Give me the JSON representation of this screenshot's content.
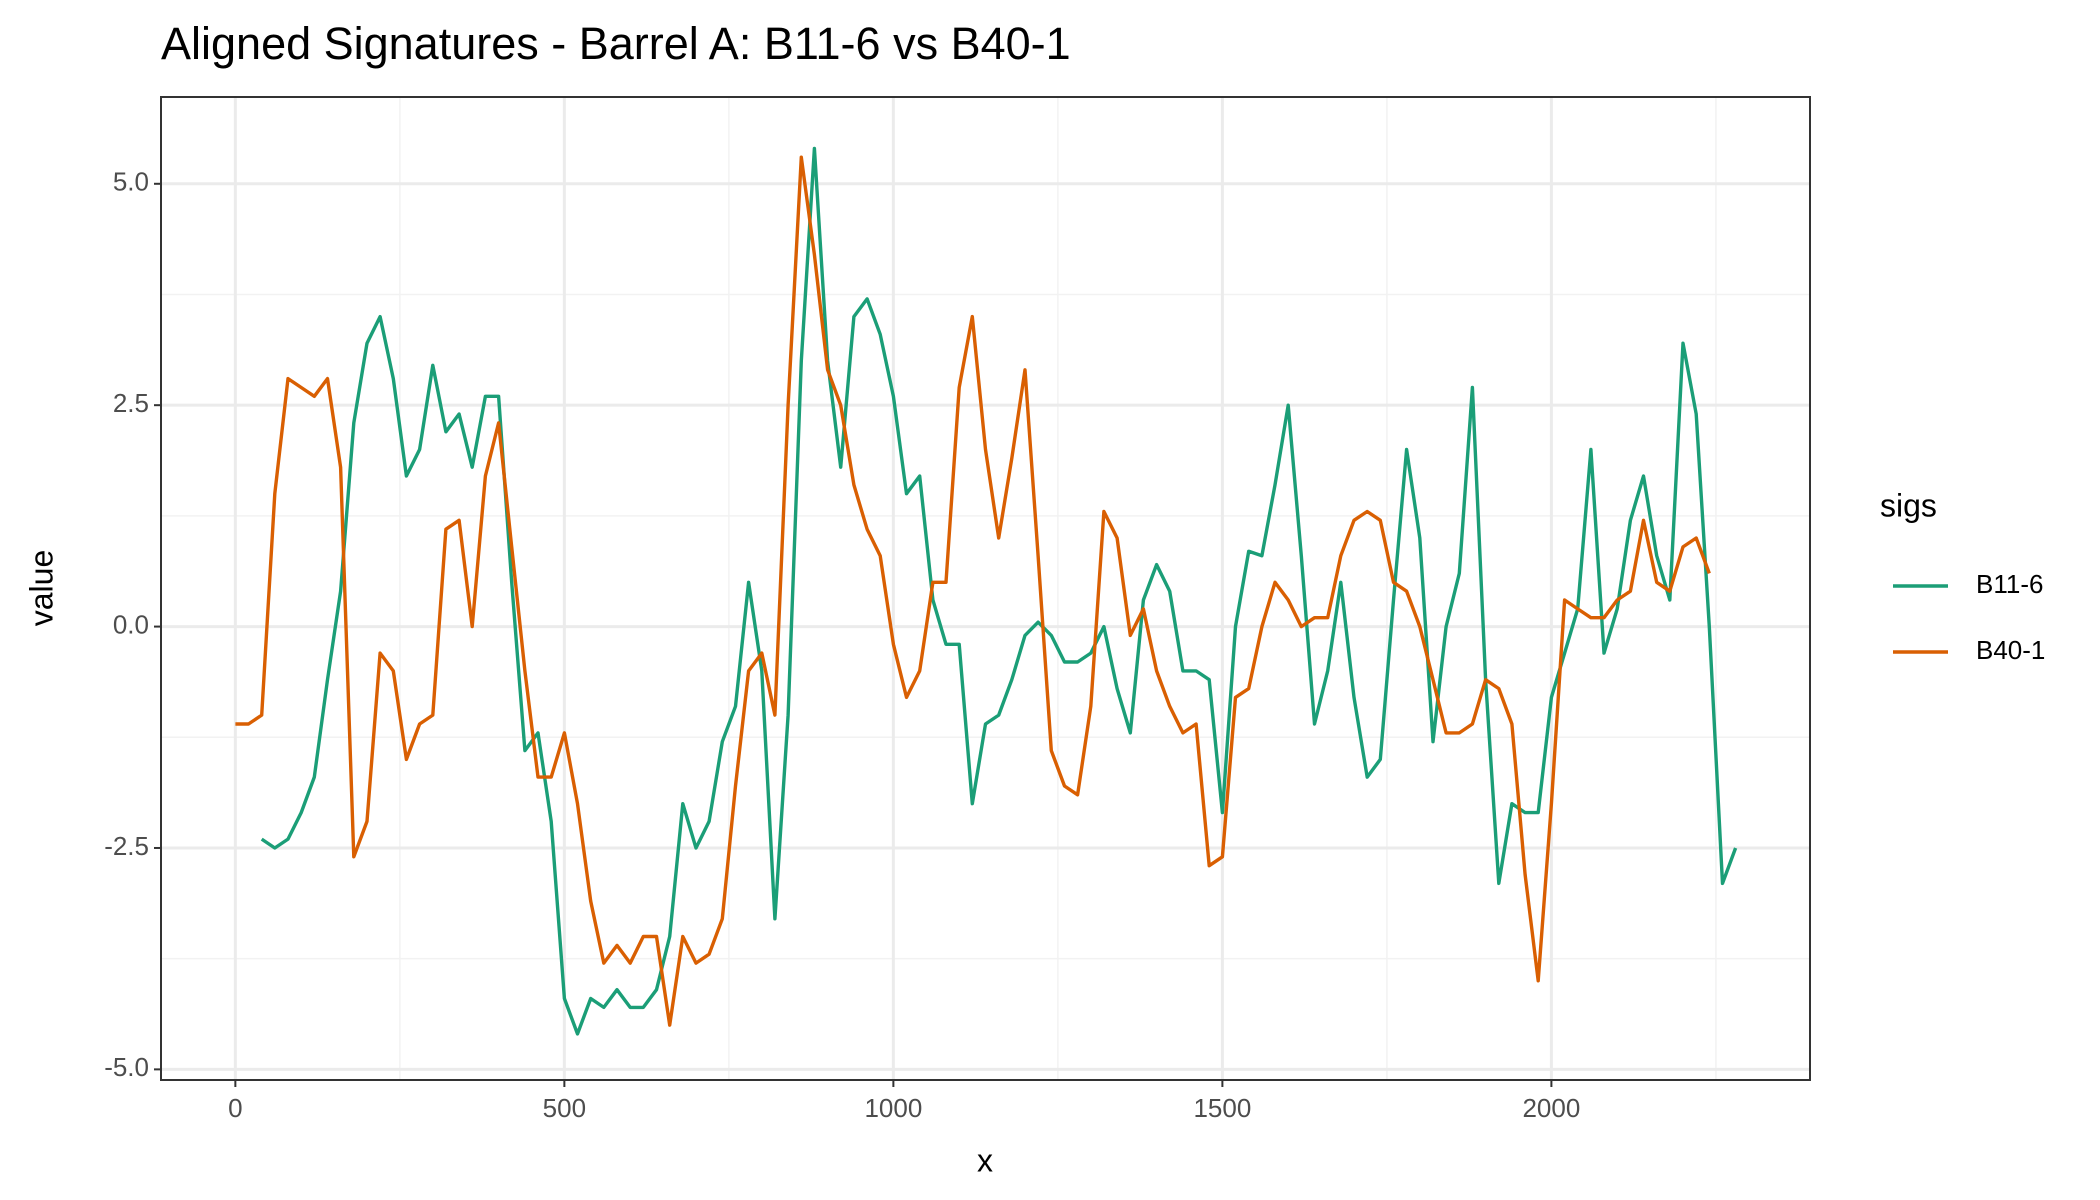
{
  "chart_data": {
    "type": "line",
    "title": "Aligned Signatures - Barrel A: B11-6 vs B40-1",
    "x_label": "x",
    "y_label": "value",
    "legend_title": "sigs",
    "legend": "right",
    "grid": true,
    "xlim": [
      -113,
      2393
    ],
    "ylim": [
      -5.12,
      5.98
    ],
    "xticks": [
      0,
      500,
      1000,
      1500,
      2000
    ],
    "yticks": [
      {
        "value": -5,
        "label": "-5.0"
      },
      {
        "value": -2.5,
        "label": "-2.5"
      },
      {
        "value": 0,
        "label": "0.0"
      },
      {
        "value": 2.5,
        "label": "2.5"
      },
      {
        "value": 5,
        "label": "5.0"
      }
    ],
    "x": [
      0,
      20,
      40,
      60,
      80,
      100,
      120,
      140,
      160,
      180,
      200,
      220,
      240,
      260,
      280,
      300,
      320,
      340,
      360,
      380,
      400,
      420,
      440,
      460,
      480,
      500,
      520,
      540,
      560,
      580,
      600,
      620,
      640,
      660,
      680,
      700,
      720,
      740,
      760,
      780,
      800,
      820,
      840,
      860,
      880,
      900,
      920,
      940,
      960,
      980,
      1000,
      1020,
      1040,
      1060,
      1080,
      1100,
      1120,
      1140,
      1160,
      1180,
      1200,
      1220,
      1240,
      1260,
      1280,
      1300,
      1320,
      1340,
      1360,
      1380,
      1400,
      1420,
      1440,
      1460,
      1480,
      1500,
      1520,
      1540,
      1560,
      1580,
      1600,
      1620,
      1640,
      1660,
      1680,
      1700,
      1720,
      1740,
      1760,
      1780,
      1800,
      1820,
      1840,
      1860,
      1880,
      1900,
      1920,
      1940,
      1960,
      1980,
      2000,
      2020,
      2040,
      2060,
      2080,
      2100,
      2120,
      2140,
      2160,
      2180,
      2200,
      2220,
      2240,
      2260,
      2280
    ],
    "series": [
      {
        "name": "B11-6",
        "color": "#1b9e77",
        "values": [
          null,
          null,
          -2.4,
          -2.5,
          -2.4,
          -2.1,
          -1.7,
          -0.6,
          0.4,
          2.3,
          3.2,
          3.5,
          2.8,
          1.7,
          2.0,
          2.95,
          2.2,
          2.4,
          1.8,
          2.6,
          2.6,
          0.5,
          -1.4,
          -1.2,
          -2.2,
          -4.2,
          -4.6,
          -4.2,
          -4.3,
          -4.1,
          -4.3,
          -4.3,
          -4.1,
          -3.5,
          -2.0,
          -2.5,
          -2.2,
          -1.3,
          -0.9,
          0.5,
          -0.5,
          -3.3,
          -1.0,
          3.0,
          5.4,
          3.0,
          1.8,
          3.5,
          3.7,
          3.3,
          2.6,
          1.5,
          1.7,
          0.3,
          -0.2,
          -0.2,
          -2.0,
          -1.1,
          -1.0,
          -0.6,
          -0.1,
          0.05,
          -0.1,
          -0.4,
          -0.4,
          -0.3,
          0.0,
          -0.7,
          -1.2,
          0.3,
          0.7,
          0.4,
          -0.5,
          -0.5,
          -0.6,
          -2.1,
          0.0,
          0.85,
          0.8,
          1.6,
          2.5,
          0.8,
          -1.1,
          -0.5,
          0.5,
          -0.8,
          -1.7,
          -1.5,
          0.3,
          2.0,
          1.0,
          -1.3,
          0.0,
          0.6,
          2.7,
          -0.6,
          -2.9,
          -2.0,
          -2.1,
          -2.1,
          -0.8,
          -0.3,
          0.2,
          2.0,
          -0.3,
          0.2,
          1.2,
          1.7,
          0.8,
          0.3,
          3.2,
          2.4,
          0.0,
          -2.9,
          -2.5
        ]
      },
      {
        "name": "B40-1",
        "color": "#d95f02",
        "values": [
          -1.1,
          -1.1,
          -1.0,
          1.5,
          2.8,
          2.7,
          2.6,
          2.8,
          1.8,
          -2.6,
          -2.2,
          -0.3,
          -0.5,
          -1.5,
          -1.1,
          -1.0,
          1.1,
          1.2,
          0.0,
          1.7,
          2.3,
          0.9,
          -0.5,
          -1.7,
          -1.7,
          -1.2,
          -2.0,
          -3.1,
          -3.8,
          -3.6,
          -3.8,
          -3.5,
          -3.5,
          -4.5,
          -3.5,
          -3.8,
          -3.7,
          -3.3,
          -1.8,
          -0.5,
          -0.3,
          -1.0,
          2.5,
          5.3,
          4.2,
          2.9,
          2.5,
          1.6,
          1.1,
          0.8,
          -0.2,
          -0.8,
          -0.5,
          0.5,
          0.5,
          2.7,
          3.5,
          2.0,
          1.0,
          1.9,
          2.9,
          0.8,
          -1.4,
          -1.8,
          -1.9,
          -0.9,
          1.3,
          1.0,
          -0.1,
          0.2,
          -0.5,
          -0.9,
          -1.2,
          -1.1,
          -2.7,
          -2.6,
          -0.8,
          -0.7,
          0.0,
          0.5,
          0.3,
          0.0,
          0.1,
          0.1,
          0.8,
          1.2,
          1.3,
          1.2,
          0.5,
          0.4,
          0.0,
          -0.6,
          -1.2,
          -1.2,
          -1.1,
          -0.6,
          -0.7,
          -1.1,
          -2.8,
          -4.0,
          -2.0,
          0.3,
          0.2,
          0.1,
          0.1,
          0.3,
          0.4,
          1.2,
          0.5,
          0.4,
          0.9,
          1.0,
          0.6,
          null,
          null
        ]
      }
    ]
  }
}
